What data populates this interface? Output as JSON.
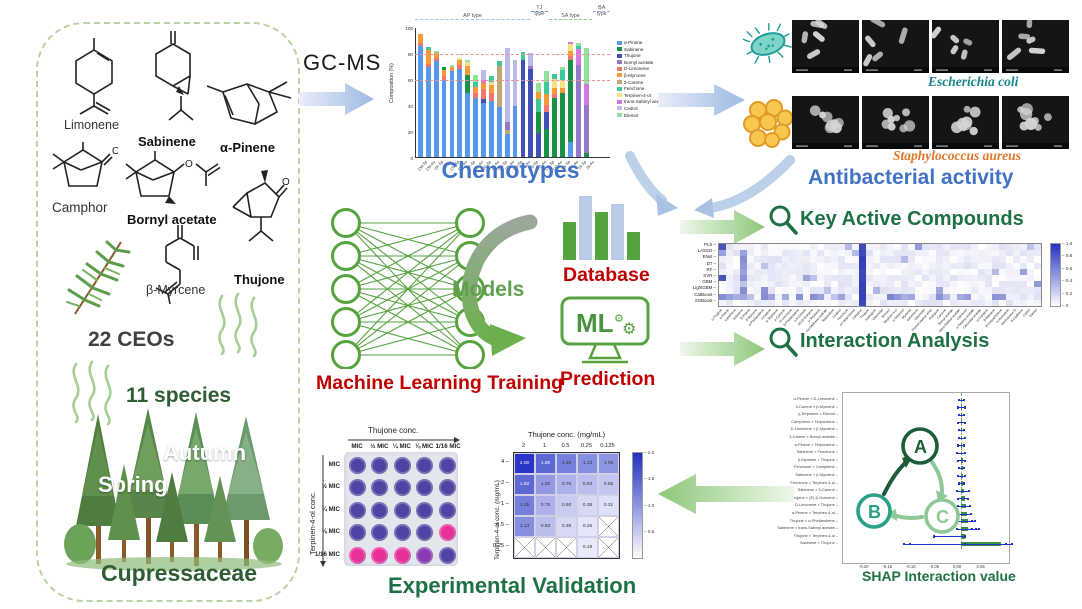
{
  "colors": {
    "accent_blue": "#4173c4",
    "accent_red": "#c00000",
    "accent_green": "#1e7145",
    "nn_green": "#56a23f",
    "ecoli_teal": "#16858a",
    "saureus_orange": "#e0762a",
    "panel_border": "#bcd3a5"
  },
  "source_panel": {
    "molecules": {
      "limonene": "Limonene",
      "sabinene": "Sabinene",
      "apinene": "α-Pinene",
      "camphor": "Camphor",
      "bornyl": "Bornyl acetate",
      "thujone": "Thujone",
      "myrcene": "β-Myrcene"
    },
    "ceos": "22 CEOs",
    "species": "11 species",
    "spring": "Spring",
    "autumn": "Autumn",
    "family": "Cupressaceae"
  },
  "gcms": {
    "label": "GC-MS"
  },
  "antibacterial": {
    "ecoli": "Escherichia coli",
    "saureus": "Staphylococcus aureus",
    "title": "Antibacterial activity"
  },
  "ml": {
    "training": "Machine Learning Training",
    "models": "Models",
    "database": "Database",
    "ml_label": "ML",
    "prediction": "Prediction"
  },
  "key_compounds": {
    "title": "Key Active Compounds"
  },
  "interaction": {
    "title": "Interaction Analysis"
  },
  "chart_data": [
    {
      "type": "bar",
      "stacked": true,
      "title": "Chemotypes",
      "ylabel": "Composition (%)",
      "ylim": [
        0,
        100
      ],
      "yticks": [
        100,
        80,
        60,
        40,
        20,
        0
      ],
      "gridlines_dashed_red": [
        80,
        60
      ],
      "series": [
        {
          "name": "α-Pinene",
          "color": "#5599e8"
        },
        {
          "name": "Sabinene",
          "color": "#199149"
        },
        {
          "name": "Thujone",
          "color": "#4050b5"
        },
        {
          "name": "Bornyl acetate",
          "color": "#9577cc"
        },
        {
          "name": "D-Limonene",
          "color": "#f2766f"
        },
        {
          "name": "β-Myrcene",
          "color": "#f59a35"
        },
        {
          "name": "3-Carene",
          "color": "#bfa874"
        },
        {
          "name": "Fenchone",
          "color": "#3fc99a"
        },
        {
          "name": "Terpinen-4-ol",
          "color": "#f6e285"
        },
        {
          "name": "trans-Sabinyl acetate",
          "color": "#d478e0"
        },
        {
          "name": "Cedrol",
          "color": "#b9bce8"
        },
        {
          "name": "Elemol",
          "color": "#8fe39b"
        }
      ],
      "categories": [
        "CM-Sp",
        "CM-Au",
        "CF-Sp",
        "CF-Au",
        "CG-Sp",
        "CG-Au",
        "JF-Sp",
        "JF-Au",
        "JC-Sp",
        "JC-Au",
        "CD-Sp",
        "CD-Au",
        "PO-Sp",
        "PO-Au",
        "TO-Sp",
        "TO-Au",
        "CO-Sp",
        "CO-Au",
        "TS-Sp",
        "TS-Au",
        "JS-Sp",
        "JS-Au"
      ],
      "bars": [
        [
          [
            0,
            87
          ],
          [
            4,
            2
          ],
          [
            5,
            7
          ]
        ],
        [
          [
            0,
            70
          ],
          [
            4,
            3
          ],
          [
            5,
            11
          ],
          [
            7,
            2
          ]
        ],
        [
          [
            0,
            75
          ],
          [
            4,
            2
          ],
          [
            5,
            4
          ],
          [
            11,
            2
          ]
        ],
        [
          [
            0,
            60
          ],
          [
            4,
            3
          ],
          [
            5,
            5
          ],
          [
            1,
            2
          ]
        ],
        [
          [
            0,
            67
          ],
          [
            5,
            3
          ],
          [
            11,
            2
          ]
        ],
        [
          [
            0,
            69
          ],
          [
            4,
            3
          ],
          [
            5,
            4
          ],
          [
            8,
            1
          ]
        ],
        [
          [
            0,
            50
          ],
          [
            1,
            14
          ],
          [
            5,
            7
          ],
          [
            8,
            3
          ],
          [
            11,
            2
          ]
        ],
        [
          [
            0,
            46
          ],
          [
            4,
            4
          ],
          [
            5,
            5
          ],
          [
            7,
            4
          ],
          [
            11,
            5
          ]
        ],
        [
          [
            0,
            42
          ],
          [
            2,
            3
          ],
          [
            4,
            8
          ],
          [
            5,
            5
          ],
          [
            9,
            2
          ],
          [
            10,
            8
          ]
        ],
        [
          [
            0,
            44
          ],
          [
            4,
            6
          ],
          [
            5,
            6
          ],
          [
            8,
            3
          ],
          [
            7,
            4
          ]
        ],
        [
          [
            0,
            39
          ],
          [
            6,
            32
          ],
          [
            7,
            4
          ]
        ],
        [
          [
            0,
            18
          ],
          [
            6,
            3
          ],
          [
            3,
            6
          ],
          [
            10,
            58
          ]
        ],
        [
          [
            0,
            40
          ],
          [
            10,
            36
          ]
        ],
        [
          [
            2,
            76
          ],
          [
            7,
            6
          ]
        ],
        [
          [
            2,
            69
          ],
          [
            3,
            2
          ],
          [
            10,
            10
          ]
        ],
        [
          [
            2,
            19
          ],
          [
            1,
            16
          ],
          [
            7,
            10
          ],
          [
            5,
            6
          ],
          [
            11,
            7
          ]
        ],
        [
          [
            1,
            22
          ],
          [
            2,
            13
          ],
          [
            4,
            6
          ],
          [
            5,
            8
          ],
          [
            7,
            10
          ],
          [
            11,
            8
          ]
        ],
        [
          [
            1,
            46
          ],
          [
            4,
            3
          ],
          [
            5,
            5
          ],
          [
            8,
            7
          ],
          [
            7,
            4
          ]
        ],
        [
          [
            1,
            50
          ],
          [
            5,
            4
          ],
          [
            8,
            6
          ],
          [
            7,
            8
          ],
          [
            11,
            2
          ]
        ],
        [
          [
            0,
            12
          ],
          [
            1,
            64
          ],
          [
            4,
            3
          ],
          [
            5,
            4
          ],
          [
            8,
            5
          ],
          [
            9,
            2
          ]
        ],
        [
          [
            3,
            72
          ],
          [
            9,
            12
          ],
          [
            7,
            3
          ],
          [
            11,
            2
          ]
        ],
        [
          [
            1,
            3
          ],
          [
            3,
            38
          ],
          [
            9,
            16
          ],
          [
            11,
            28
          ]
        ]
      ],
      "groups": [
        {
          "label": "AP type",
          "from": 0.0,
          "to": 0.59,
          "lift": 0,
          "color": "#9ec5e8"
        },
        {
          "label": "TJ type",
          "from": 0.595,
          "to": 0.68,
          "lift": 1,
          "color": "#6b8fd8"
        },
        {
          "label": "SA type",
          "from": 0.685,
          "to": 0.91,
          "lift": 0,
          "color": "#8fc98f"
        },
        {
          "label": "BA type",
          "from": 0.915,
          "to": 1.0,
          "lift": 1,
          "color": "#b39ddb"
        }
      ]
    },
    {
      "type": "heatmap",
      "name": "model-compound-importance",
      "colormap": "white-to-blue",
      "rows": [
        "PLS",
        "LASSO",
        "ENet",
        "DT",
        "RF",
        "SVR",
        "GBM",
        "LightGBM",
        "CatBoost",
        "XGBoost"
      ],
      "columns": [
        "α-Thujene",
        "α-Pinene",
        "Camphene",
        "Sabinene",
        "β-Pinene",
        "β-Myrcene",
        "α-Phellandrene",
        "3-Carene",
        "α-Terpinene",
        "p-Cymene",
        "D-Limonene",
        "β-Phellandrene",
        "1,8-Cineole",
        "(E)-β-Ocimene",
        "γ-Terpinene",
        "cis-Sabinene hydrate",
        "Terpinolene",
        "Linalool",
        "Fenchone",
        "α-Campholenal",
        "Camphor",
        "Thujone",
        "Isothujone",
        "Citronellal",
        "Borneol",
        "Terpinen-4-ol",
        "α-Terpineol",
        "Myrtenal",
        "Verbenone",
        "Citronellol",
        "Thymol methyl ether",
        "Pulegone",
        "Carvone",
        "Bornyl acetate",
        "trans-Sabinyl acetate",
        "Carvacrol",
        "α-Terpinyl acetate",
        "Citronellyl acetate",
        "α-Copaene",
        "β-Elemene",
        "β-Caryophyllene",
        "α-Humulene",
        "Germacrene D",
        "δ-Cadinene",
        "Cedrol",
        "Elemol"
      ],
      "colorbar_ticks": [
        "1.0",
        "0.8",
        "0.6",
        "0.4",
        "0.2",
        "0"
      ]
    },
    {
      "type": "bar",
      "name": "shap-interaction",
      "xlabel": "SHAP Interaction value",
      "xticks": [
        "-0.20",
        "-0.15",
        "-0.10",
        "-0.05",
        "0.00",
        "0.05"
      ],
      "rows": [
        {
          "label": "α-Pinene × D-Limonene",
          "bar": 1,
          "dots": [
            -3,
            2
          ]
        },
        {
          "label": "3-Carene × β-Myrcene",
          "bar": 1,
          "dots": [
            -4,
            3
          ]
        },
        {
          "label": "γ-Terpinene × Elemol",
          "bar": 1,
          "dots": [
            -3,
            2
          ]
        },
        {
          "label": "Camphene × Terpinolene",
          "bar": 1,
          "dots": [
            -4,
            3
          ]
        },
        {
          "label": "D-Limonene × β-Myrcene",
          "bar": 1,
          "dots": [
            -3,
            2
          ]
        },
        {
          "label": "3-Carene × Bornyl acetate",
          "bar": 1,
          "dots": [
            -3,
            3
          ]
        },
        {
          "label": "α-Pinene × Terpinolene",
          "bar": 1,
          "dots": [
            -4,
            2
          ]
        },
        {
          "label": "Sabinene × Fenchone",
          "bar": 1,
          "dots": [
            -5,
            3
          ]
        },
        {
          "label": "β-Myrcene × Thujone",
          "bar": 1.5,
          "dots": [
            -4,
            3
          ]
        },
        {
          "label": "Fenchone × Camphene",
          "bar": 1.5,
          "dots": [
            -3,
            2
          ]
        },
        {
          "label": "Sabinene × β-Myrcene",
          "bar": 2,
          "dots": [
            -4,
            3
          ]
        },
        {
          "label": "Fenchone × Terpinen-4-ol",
          "bar": 2,
          "dots": [
            -3,
            2
          ]
        },
        {
          "label": "Sabinene × 3-Carene",
          "bar": 3,
          "dots": [
            -5,
            7
          ]
        },
        {
          "label": "α-Thujene × (E)-β-Ocimene",
          "bar": 4,
          "dots": [
            -4,
            6
          ]
        },
        {
          "label": "D-Limonene × Thujone",
          "bar": 5,
          "dots": [
            -4,
            8
          ]
        },
        {
          "label": "α-Pinene × Terpinen-4-ol",
          "bar": 6,
          "dots": [
            -5,
            9
          ]
        },
        {
          "label": "Thujone × α-Phellandrene",
          "bar": 7,
          "dots": [
            -4,
            10,
            13
          ]
        },
        {
          "label": "Sabinene × trans-Sabinyl acetate",
          "bar": 7,
          "dots": [
            -5,
            10,
            14,
            17
          ]
        },
        {
          "label": "Thujone × Terpinen-4-ol",
          "bar": 4,
          "dots": [
            -28,
            3
          ]
        },
        {
          "label": "Sabinene × Thujone",
          "bar": 40,
          "dots": [
            -58,
            -52,
            3,
            44,
            50
          ]
        }
      ],
      "caption": "SHAP Interaction value",
      "nodes": {
        "a": "A",
        "b": "B",
        "c": "C"
      }
    },
    {
      "type": "heatmap",
      "name": "fici-checkerboard",
      "title": "Thujone conc. (mg/mL)",
      "ylabel": "Terpinen-4-ol conc. (mg/mL)",
      "columns": [
        "2",
        "1",
        "0.5",
        "0.25",
        "0.125"
      ],
      "rows": [
        "4",
        "2",
        "1",
        "0.5",
        "0.25"
      ],
      "values": [
        [
          2.0,
          1.5,
          1.25,
          1.13,
          1.06
        ],
        [
          1.5,
          1.0,
          0.75,
          0.63,
          0.56
        ],
        [
          1.25,
          0.75,
          0.5,
          0.38,
          0.31
        ],
        [
          1.13,
          0.63,
          0.38,
          0.25,
          "X"
        ],
        [
          "X",
          "X",
          "X",
          0.19,
          "X"
        ]
      ],
      "colorbar_ticks": [
        "2.0",
        "1.5",
        "1.0",
        "0.5"
      ]
    }
  ],
  "validation": {
    "plate_title": "Thujone conc.",
    "plate_ylabel": "Terpinen-4-ol conc.",
    "plate_cols": [
      "MIC",
      "½ MIC",
      "¼ MIC",
      "⅛ MIC",
      "1/16 MIC"
    ],
    "plate_rows": [
      "MIC",
      "½ MIC",
      "¼ MIC",
      "⅛ MIC",
      "1/16 MIC"
    ],
    "wells": [
      [
        "P",
        "P",
        "P",
        "P",
        "P"
      ],
      [
        "P",
        "P",
        "P",
        "P",
        "P"
      ],
      [
        "P",
        "P",
        "P",
        "P",
        "P"
      ],
      [
        "P",
        "P",
        "P",
        "P",
        "K"
      ],
      [
        "K",
        "K",
        "K",
        "M",
        "P"
      ]
    ],
    "well_colors": {
      "P": "#4f43a3",
      "K": "#e8309b",
      "M": "#8a3bb5"
    },
    "caption": "Experimental Validation"
  }
}
